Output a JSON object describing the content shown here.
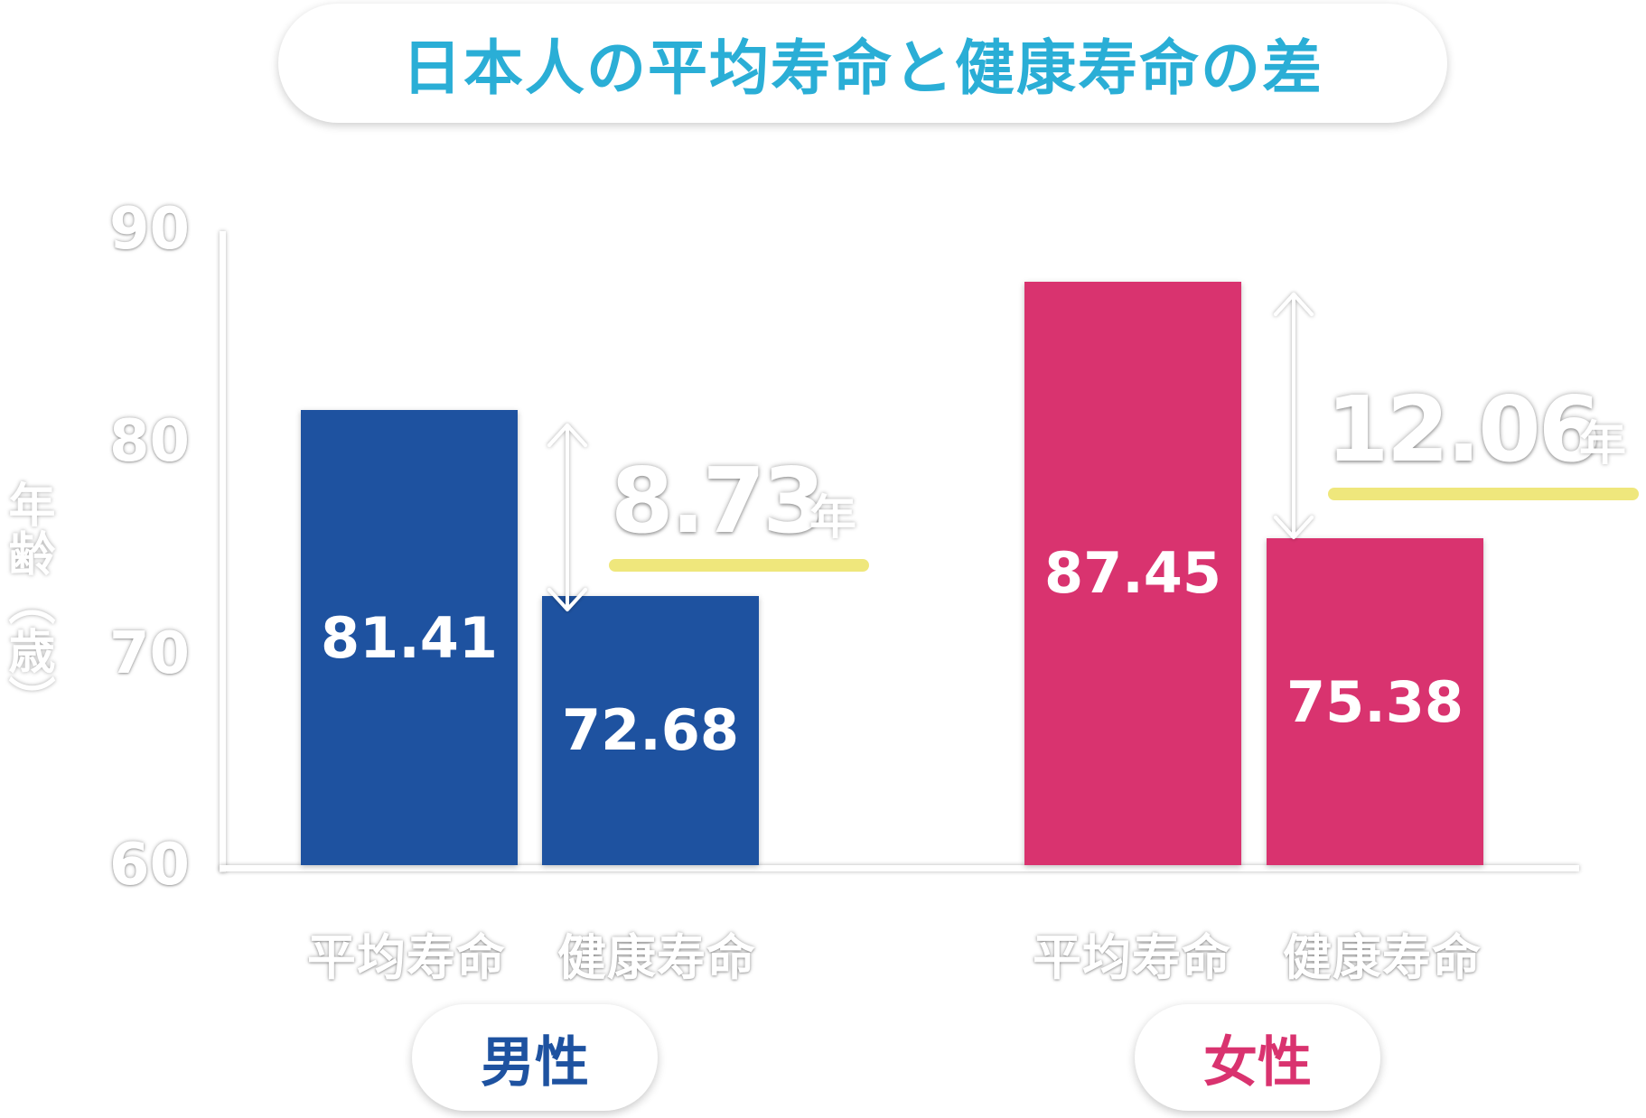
{
  "title": "日本人の平均寿命と健康寿命の差",
  "colors": {
    "title": "#2aaed6",
    "male": "#1e52a0",
    "female": "#d9336f",
    "highlight": "#efe77c"
  },
  "yaxis": {
    "label": "年齢（歳）",
    "ticks": [
      "90",
      "80",
      "70",
      "60"
    ]
  },
  "categories": [
    "平均寿命",
    "健康寿命"
  ],
  "groups": [
    {
      "name": "男性",
      "diff": "8.73",
      "diff_unit": "年"
    },
    {
      "name": "女性",
      "diff": "12.06",
      "diff_unit": "年"
    }
  ],
  "chart_data": {
    "type": "bar",
    "title": "日本人の平均寿命と健康寿命の差",
    "ylabel": "年齢（歳）",
    "ylim": [
      60,
      90
    ],
    "yticks": [
      60,
      70,
      80,
      90
    ],
    "categories": [
      "平均寿命",
      "健康寿命"
    ],
    "series": [
      {
        "name": "男性",
        "values": [
          81.41,
          72.68
        ],
        "labels": [
          "81.41",
          "72.68"
        ]
      },
      {
        "name": "女性",
        "values": [
          87.45,
          75.38
        ],
        "labels": [
          "87.45",
          "75.38"
        ]
      }
    ],
    "annotations": [
      {
        "group": "男性",
        "text": "8.73年",
        "value": 8.73
      },
      {
        "group": "女性",
        "text": "12.06年",
        "value": 12.06
      }
    ]
  }
}
